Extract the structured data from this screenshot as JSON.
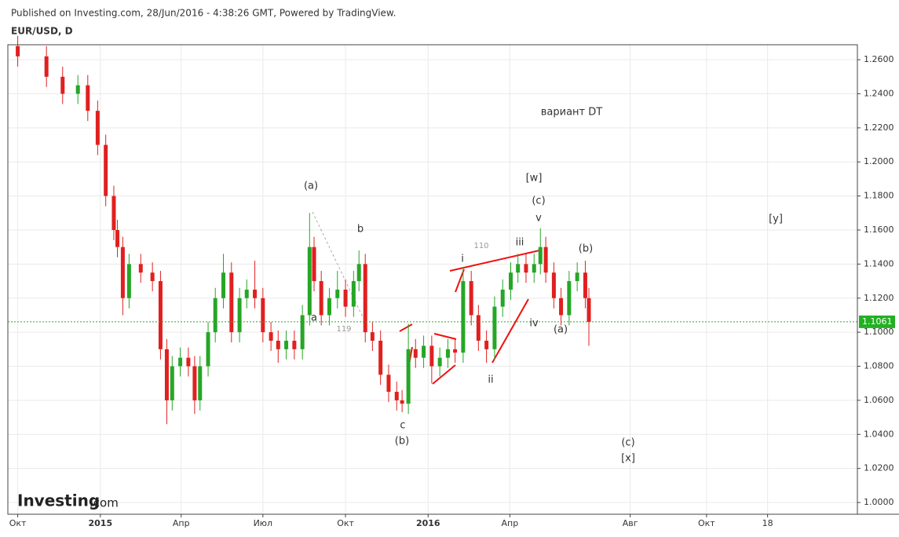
{
  "header": {
    "published": "Published on Investing.com, 28/Jun/2016 - 4:38:26 GMT, Powered by TradingView."
  },
  "chart_data": {
    "type": "candlestick",
    "title": "EUR/USD, D",
    "x": [
      0,
      32,
      50,
      67,
      78,
      89,
      98,
      107,
      111,
      117,
      124,
      137,
      150,
      159,
      166,
      172,
      181,
      190,
      197,
      203,
      212,
      220,
      229,
      238,
      247,
      255,
      264,
      273,
      282,
      290,
      299,
      308,
      317,
      325,
      330,
      338,
      347,
      356,
      365,
      374,
      380,
      387,
      395,
      404,
      413,
      422,
      428,
      435,
      443,
      452,
      461,
      470,
      479,
      487,
      496,
      505,
      513,
      522,
      531,
      540,
      549,
      557,
      566,
      575,
      582,
      588,
      597,
      605,
      614,
      623,
      632,
      636
    ],
    "open": [
      1.268,
      1.262,
      1.25,
      1.24,
      1.245,
      1.23,
      1.21,
      1.18,
      1.16,
      1.15,
      1.12,
      1.14,
      1.135,
      1.13,
      1.09,
      1.06,
      1.08,
      1.085,
      1.08,
      1.06,
      1.08,
      1.1,
      1.12,
      1.135,
      1.1,
      1.12,
      1.125,
      1.12,
      1.1,
      1.095,
      1.09,
      1.095,
      1.09,
      1.11,
      1.15,
      1.13,
      1.11,
      1.12,
      1.125,
      1.115,
      1.13,
      1.14,
      1.1,
      1.095,
      1.075,
      1.065,
      1.06,
      1.058,
      1.09,
      1.085,
      1.092,
      1.08,
      1.085,
      1.09,
      1.088,
      1.13,
      1.11,
      1.095,
      1.09,
      1.115,
      1.125,
      1.135,
      1.14,
      1.135,
      1.14,
      1.15,
      1.135,
      1.12,
      1.11,
      1.13,
      1.135,
      1.12
    ],
    "high": [
      1.274,
      1.268,
      1.256,
      1.251,
      1.251,
      1.236,
      1.216,
      1.186,
      1.166,
      1.156,
      1.146,
      1.146,
      1.141,
      1.136,
      1.096,
      1.086,
      1.091,
      1.091,
      1.086,
      1.086,
      1.106,
      1.126,
      1.146,
      1.141,
      1.126,
      1.131,
      1.142,
      1.126,
      1.106,
      1.101,
      1.101,
      1.101,
      1.116,
      1.17,
      1.156,
      1.136,
      1.126,
      1.136,
      1.131,
      1.136,
      1.148,
      1.146,
      1.106,
      1.101,
      1.081,
      1.071,
      1.066,
      1.105,
      1.096,
      1.098,
      1.098,
      1.091,
      1.096,
      1.096,
      1.138,
      1.136,
      1.116,
      1.101,
      1.121,
      1.131,
      1.141,
      1.146,
      1.146,
      1.146,
      1.161,
      1.156,
      1.141,
      1.126,
      1.136,
      1.141,
      1.142,
      1.126
    ],
    "low": [
      1.256,
      1.244,
      1.234,
      1.234,
      1.224,
      1.204,
      1.174,
      1.154,
      1.144,
      1.11,
      1.114,
      1.129,
      1.124,
      1.084,
      1.046,
      1.054,
      1.074,
      1.074,
      1.052,
      1.054,
      1.074,
      1.094,
      1.114,
      1.094,
      1.094,
      1.114,
      1.114,
      1.094,
      1.089,
      1.082,
      1.084,
      1.084,
      1.084,
      1.104,
      1.124,
      1.104,
      1.104,
      1.114,
      1.109,
      1.109,
      1.124,
      1.094,
      1.089,
      1.069,
      1.059,
      1.054,
      1.053,
      1.052,
      1.079,
      1.079,
      1.07,
      1.074,
      1.079,
      1.082,
      1.082,
      1.104,
      1.089,
      1.082,
      1.084,
      1.109,
      1.119,
      1.129,
      1.129,
      1.129,
      1.134,
      1.129,
      1.114,
      1.104,
      1.104,
      1.124,
      1.114,
      1.092
    ],
    "close": [
      1.262,
      1.25,
      1.24,
      1.245,
      1.23,
      1.21,
      1.18,
      1.16,
      1.15,
      1.12,
      1.14,
      1.135,
      1.13,
      1.09,
      1.06,
      1.08,
      1.085,
      1.08,
      1.06,
      1.08,
      1.1,
      1.12,
      1.135,
      1.1,
      1.12,
      1.125,
      1.12,
      1.1,
      1.095,
      1.09,
      1.095,
      1.09,
      1.11,
      1.15,
      1.13,
      1.11,
      1.12,
      1.125,
      1.115,
      1.13,
      1.14,
      1.1,
      1.095,
      1.075,
      1.065,
      1.06,
      1.058,
      1.09,
      1.085,
      1.092,
      1.08,
      1.085,
      1.09,
      1.088,
      1.13,
      1.11,
      1.095,
      1.09,
      1.115,
      1.125,
      1.135,
      1.14,
      1.135,
      1.14,
      1.15,
      1.135,
      1.12,
      1.11,
      1.13,
      1.135,
      1.12,
      1.106
    ],
    "up_color": "#26a626",
    "down_color": "#e02020",
    "last_price": 1.1061,
    "last_price_color": "#22b022",
    "xlim": [
      -11,
      935
    ],
    "ylim": [
      0.9931,
      1.2688
    ],
    "xticks": [
      {
        "value": 0,
        "label": "Окт"
      },
      {
        "value": 92,
        "label": "2015"
      },
      {
        "value": 182,
        "label": "Апр"
      },
      {
        "value": 273,
        "label": "Июл"
      },
      {
        "value": 365,
        "label": "Окт"
      },
      {
        "value": 457,
        "label": "2016"
      },
      {
        "value": 548,
        "label": "Апр"
      },
      {
        "value": 682,
        "label": "Авг"
      },
      {
        "value": 767,
        "label": "Окт"
      },
      {
        "value": 835,
        "label": "18"
      }
    ],
    "yticks": [
      {
        "value": 1.0,
        "label": "1.0000"
      },
      {
        "value": 1.02,
        "label": "1.0200"
      },
      {
        "value": 1.04,
        "label": "1.0400"
      },
      {
        "value": 1.06,
        "label": "1.0600"
      },
      {
        "value": 1.08,
        "label": "1.0800"
      },
      {
        "value": 1.1,
        "label": "1.1000"
      },
      {
        "value": 1.12,
        "label": "1.1200"
      },
      {
        "value": 1.14,
        "label": "1.1400"
      },
      {
        "value": 1.16,
        "label": "1.1600"
      },
      {
        "value": 1.18,
        "label": "1.1800"
      },
      {
        "value": 1.2,
        "label": "1.2000"
      },
      {
        "value": 1.22,
        "label": "1.2200"
      },
      {
        "value": 1.24,
        "label": "1.2400"
      },
      {
        "value": 1.26,
        "label": "1.2600"
      }
    ],
    "grid": true,
    "annotations": [
      "вариант DT",
      "[w]",
      "(c)",
      "v",
      "(a)",
      "b",
      "a",
      "119",
      "110",
      "i",
      "iii",
      "(b)",
      "iv",
      "(a)",
      "ii",
      "c",
      "(b)",
      "(c)",
      "[x]",
      "[y]"
    ],
    "logo": {
      "brand": "Investing",
      "suffix": ".com"
    }
  }
}
